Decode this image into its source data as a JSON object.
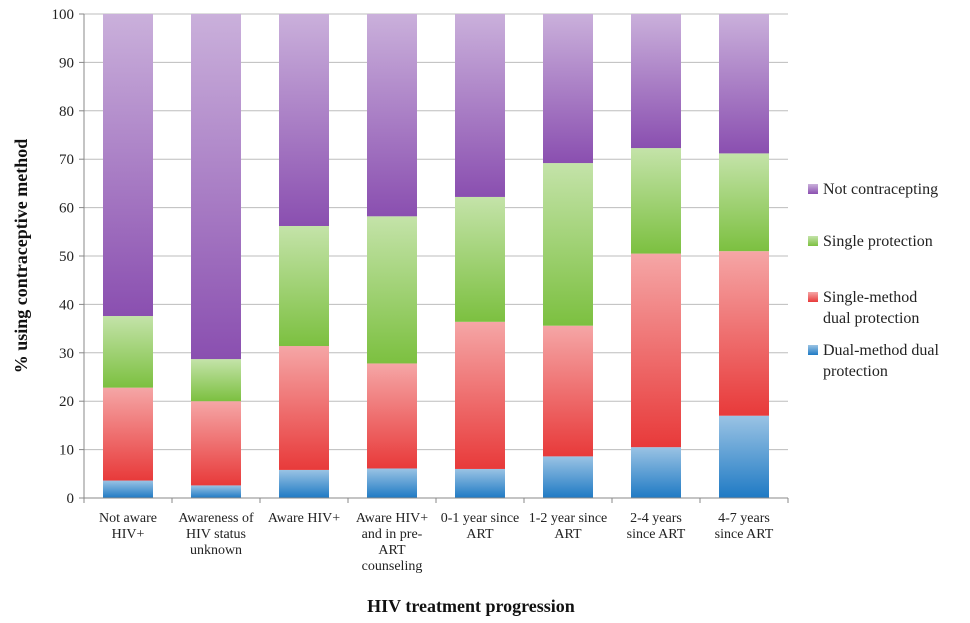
{
  "chart_data": {
    "type": "bar",
    "stacked": true,
    "title": "",
    "xlabel": "HIV treatment progression",
    "ylabel": "% using contraceptive method",
    "ylim": [
      0,
      100
    ],
    "yticks": [
      0,
      10,
      20,
      30,
      40,
      50,
      60,
      70,
      80,
      90,
      100
    ],
    "grid": true,
    "legend_position": "right",
    "categories": [
      "Not aware HIV+",
      "Awareness of HIV status unknown",
      "Aware HIV+",
      "Aware HIV+ and in pre-ART counseling",
      "0-1 year since ART",
      "1-2 year since ART",
      "2-4 years since ART",
      "4-7 years since ART"
    ],
    "category_label_lines": [
      [
        "Not aware",
        "HIV+"
      ],
      [
        "Awareness of",
        "HIV status",
        "unknown"
      ],
      [
        "Aware HIV+"
      ],
      [
        "Aware HIV+",
        "and in pre-",
        "ART",
        "counseling"
      ],
      [
        "0-1 year since",
        "ART"
      ],
      [
        "1-2 year since",
        "ART"
      ],
      [
        "2-4 years",
        "since ART"
      ],
      [
        "4-7 years",
        "since ART"
      ]
    ],
    "series": [
      {
        "name": "Dual-method dual protection",
        "color": "#1f7ac4",
        "values": [
          3.6,
          2.6,
          5.8,
          6.1,
          6.0,
          8.6,
          10.5,
          17.0
        ]
      },
      {
        "name": "Single-method dual protection",
        "color": "#e83a3a",
        "values": [
          19.2,
          17.4,
          25.6,
          21.7,
          30.4,
          27.0,
          40.0,
          34.0
        ]
      },
      {
        "name": "Single protection",
        "color": "#7cc040",
        "values": [
          14.8,
          8.7,
          24.8,
          30.4,
          25.8,
          33.6,
          21.8,
          20.2
        ]
      },
      {
        "name": "Not contracepting",
        "color": "#8a4fb0",
        "values": [
          62.4,
          71.3,
          43.8,
          41.8,
          37.8,
          30.8,
          27.7,
          28.8
        ]
      }
    ],
    "legend": [
      {
        "lines": [
          "Not contracepting"
        ],
        "series": 3
      },
      {
        "lines": [
          "Single protection"
        ],
        "series": 2
      },
      {
        "lines": [
          "Single-method",
          "dual protection"
        ],
        "series": 1
      },
      {
        "lines": [
          "Dual-method dual",
          "protection"
        ],
        "series": 0
      }
    ]
  }
}
